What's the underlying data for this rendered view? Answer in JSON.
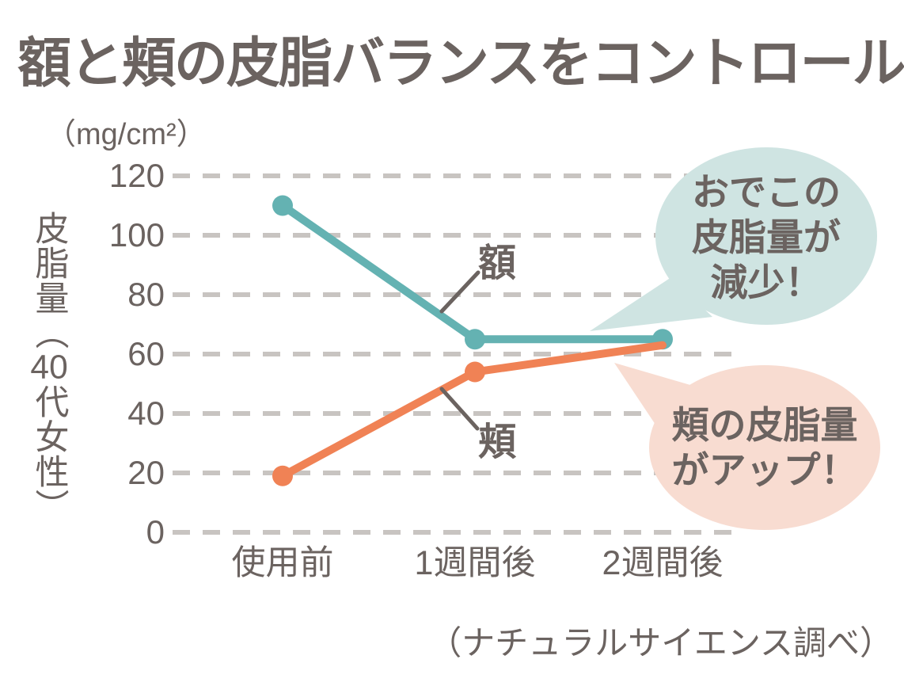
{
  "title": "額と頬の皮脂バランスをコントロール",
  "y_axis": {
    "unit_label": "（mg/cm²）",
    "label_full": "皮脂量（40代女性）",
    "label_prefix": "皮脂量（",
    "label_tcy": "40",
    "label_suffix": "代女性）"
  },
  "chart_data": {
    "type": "line",
    "categories": [
      "使用前",
      "1週間後",
      "2週間後"
    ],
    "series": [
      {
        "name": "額",
        "values": [
          110,
          65,
          65
        ],
        "color": "#64b2b2"
      },
      {
        "name": "頬",
        "values": [
          19,
          54,
          63
        ],
        "color": "#f08255"
      }
    ],
    "title": "額と頬の皮脂バランスをコントロール",
    "xlabel": "",
    "ylabel": "皮脂量（40代女性）",
    "unit": "mg/cm²",
    "yticks": [
      0,
      20,
      40,
      60,
      80,
      100,
      120
    ],
    "ylim": [
      0,
      130
    ],
    "grid": "dashed-horizontal",
    "legend_position": "inline-annotations"
  },
  "bubbles": {
    "teal": {
      "lines": [
        "おでこの",
        "皮脂量が",
        "減少！"
      ],
      "bg": "#cfe4e2"
    },
    "pink": {
      "lines": [
        "頬の皮脂量",
        "がアップ！"
      ],
      "bg": "#f8dcd1"
    }
  },
  "source": "（ナチュラルサイエンス調べ）",
  "colors": {
    "text": "#6b6360",
    "gridline": "#c8c4c1",
    "forehead": "#64b2b2",
    "cheek": "#f08255",
    "bubble_teal_bg": "#cfe4e2",
    "bubble_pink_bg": "#f8dcd1"
  }
}
